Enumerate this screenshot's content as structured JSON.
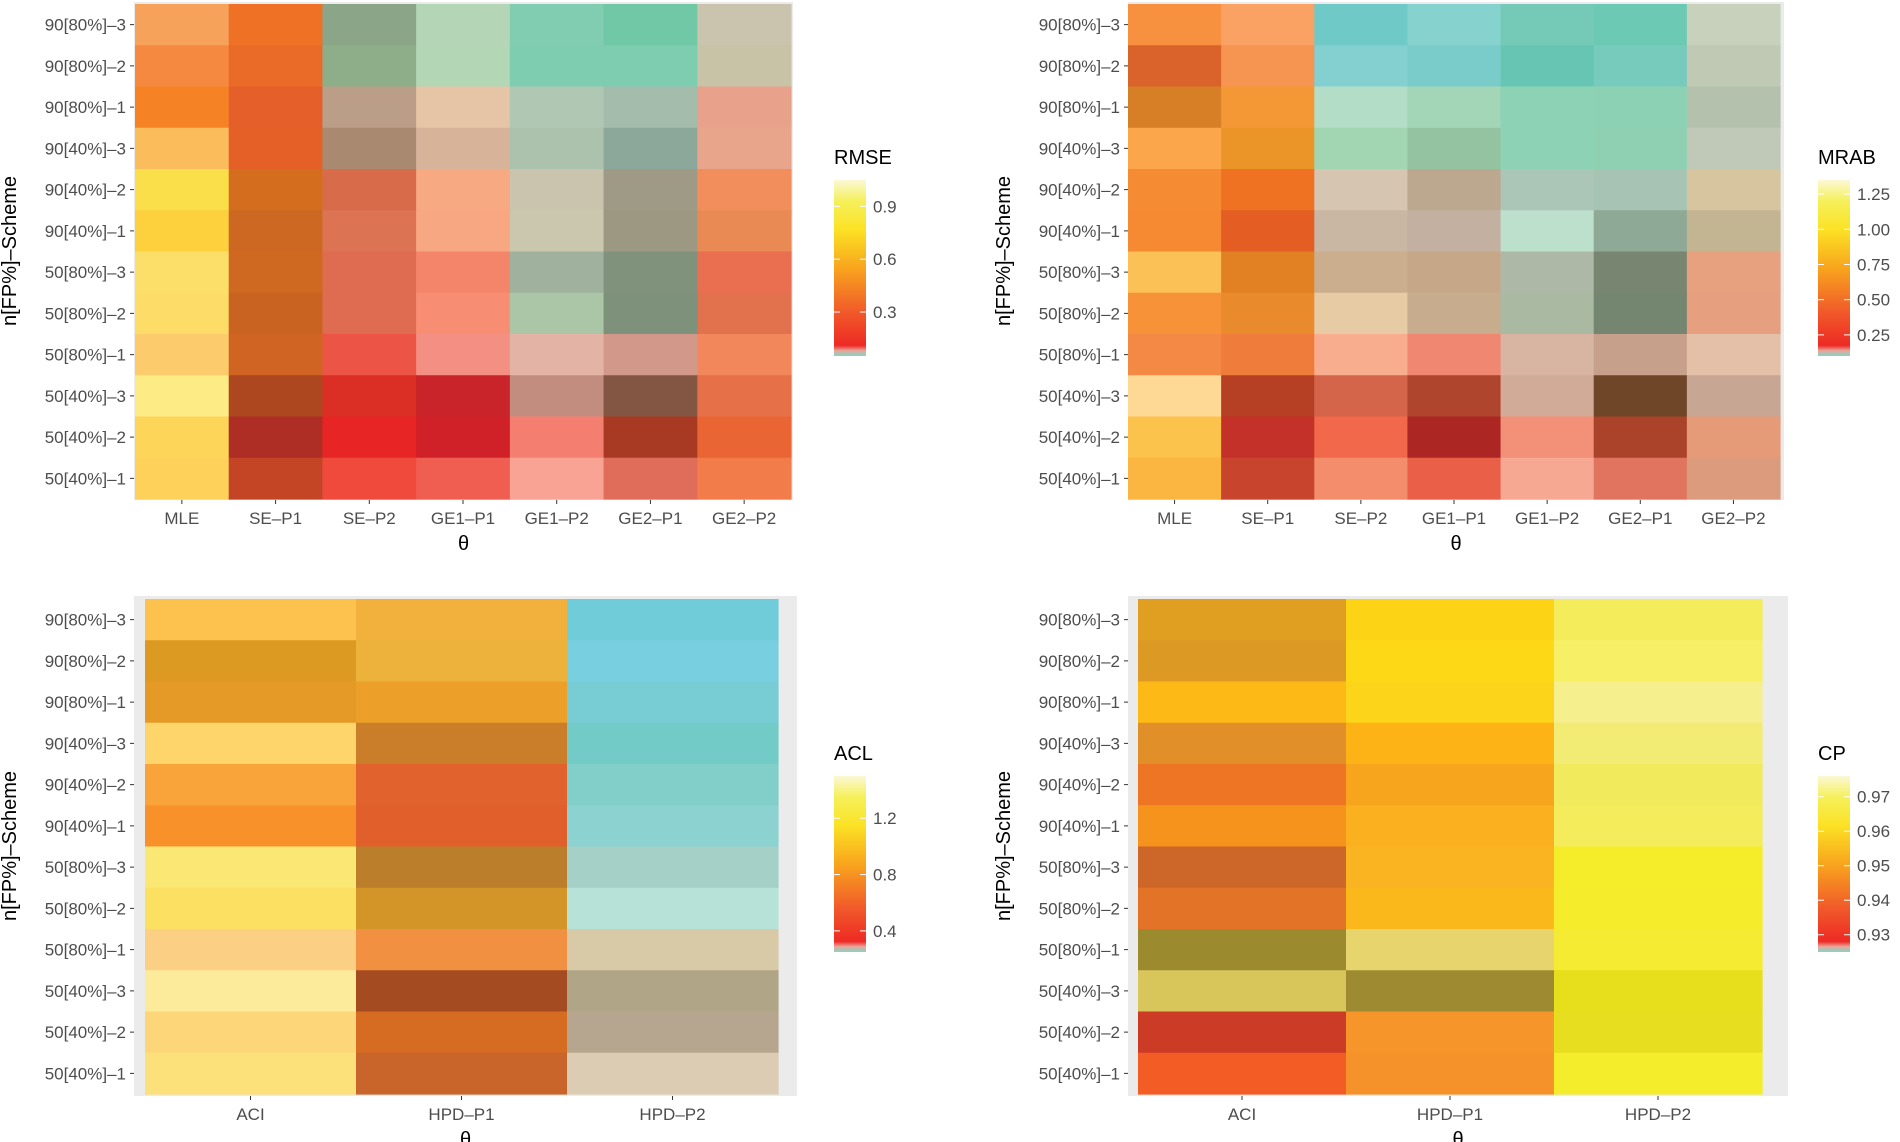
{
  "chart_data": [
    {
      "type": "heatmap",
      "title": "",
      "xlabel": "θ",
      "ylabel": "n[FP%]–Scheme",
      "legend_title": "RMSE",
      "legend_ticks": [
        "0.3",
        "0.6",
        "0.9"
      ],
      "legend_range": [
        0.05,
        1.05
      ],
      "x_categories": [
        "MLE",
        "SE–P1",
        "SE–P2",
        "GE1–P1",
        "GE1–P2",
        "GE2–P1",
        "GE2–P2"
      ],
      "y_categories": [
        "90[80%]–3",
        "90[80%]–2",
        "90[80%]–1",
        "90[40%]–3",
        "90[40%]–2",
        "90[40%]–1",
        "50[80%]–3",
        "50[80%]–2",
        "50[80%]–1",
        "50[40%]–3",
        "50[40%]–2",
        "50[40%]–1"
      ],
      "cell_colors": [
        [
          "#f7a25a",
          "#ee7125",
          "#8aa587",
          "#b5d6b6",
          "#80cdb1",
          "#70c8a6",
          "#cac3ad"
        ],
        [
          "#f5893f",
          "#ea6b27",
          "#8ead89",
          "#b3d6b5",
          "#7ecdb0",
          "#7ecdb1",
          "#c8c3a6"
        ],
        [
          "#f58326",
          "#e55f2b",
          "#bb9e87",
          "#e6c4a6",
          "#b0c7b4",
          "#a4bcab",
          "#e8a28b"
        ],
        [
          "#fbbd5c",
          "#e56027",
          "#a98a70",
          "#d7b39a",
          "#adc2ad",
          "#8ba89a",
          "#e8a58b"
        ],
        [
          "#fbdf4a",
          "#d46e1e",
          "#d86c4a",
          "#f7a982",
          "#cac3ad",
          "#9e9a85",
          "#f18e5b"
        ],
        [
          "#fdd13e",
          "#cd6822",
          "#dc7352",
          "#f7a782",
          "#cbc7ae",
          "#9c9882",
          "#e98a55"
        ],
        [
          "#fcdf69",
          "#cf6922",
          "#df6c51",
          "#f4856b",
          "#a0b29d",
          "#80917c",
          "#ea6f50"
        ],
        [
          "#fddc68",
          "#c96322",
          "#df6c51",
          "#f78e73",
          "#aac6a7",
          "#7e917b",
          "#e2714e"
        ],
        [
          "#fccb6c",
          "#d06423",
          "#ec5545",
          "#f48f83",
          "#e3b3a5",
          "#d2998b",
          "#f3875c"
        ],
        [
          "#fdeb86",
          "#ac4720",
          "#db2e25",
          "#c8242a",
          "#c28d7f",
          "#835543",
          "#e67048"
        ],
        [
          "#fdd659",
          "#ae2d24",
          "#e82525",
          "#d02128",
          "#f47f71",
          "#a83a24",
          "#e96534"
        ],
        [
          "#fdd15a",
          "#c44525",
          "#ef4a3c",
          "#f05e51",
          "#f8a393",
          "#e06c5a",
          "#f37c4b"
        ]
      ]
    },
    {
      "type": "heatmap",
      "title": "",
      "xlabel": "θ",
      "ylabel": "n[FP%]–Scheme",
      "legend_title": "MRAB",
      "legend_ticks": [
        "0.25",
        "0.50",
        "0.75",
        "1.00",
        "1.25"
      ],
      "legend_range": [
        0.1,
        1.35
      ],
      "x_categories": [
        "MLE",
        "SE–P1",
        "SE–P2",
        "GE1–P1",
        "GE1–P2",
        "GE2–P1",
        "GE2–P2"
      ],
      "y_categories": [
        "90[80%]–3",
        "90[80%]–2",
        "90[80%]–1",
        "90[40%]–3",
        "90[40%]–2",
        "90[40%]–1",
        "50[80%]–3",
        "50[80%]–2",
        "50[80%]–1",
        "50[40%]–3",
        "50[40%]–2",
        "50[40%]–1"
      ],
      "cell_colors": [
        [
          "#f7903f",
          "#f9a263",
          "#6fc9c6",
          "#86d2cf",
          "#74cab6",
          "#6cc9b4",
          "#c8d1bb"
        ],
        [
          "#d9632a",
          "#f69451",
          "#84d0d1",
          "#79ccca",
          "#67c6b3",
          "#76cbbc",
          "#bfc9b3"
        ],
        [
          "#d67f26",
          "#f39834",
          "#b3ddc7",
          "#a2d6b6",
          "#8ed2b6",
          "#8dd1b4",
          "#b4c2ad"
        ],
        [
          "#fba64b",
          "#eb9529",
          "#a2d6b2",
          "#94c3a2",
          "#8ed2b6",
          "#8fd0b3",
          "#c0c9b7"
        ],
        [
          "#f58c34",
          "#ef7222",
          "#d6c5b1",
          "#bca88f",
          "#abc5b6",
          "#a6c3b4",
          "#d6c59f"
        ],
        [
          "#f58a33",
          "#e45e23",
          "#c9b6a3",
          "#c3b0a1",
          "#bde0cd",
          "#8ea995",
          "#c3b492"
        ],
        [
          "#fbc156",
          "#e18124",
          "#cbae8e",
          "#c6a889",
          "#adb9a6",
          "#788671",
          "#e7a17f"
        ],
        [
          "#f89239",
          "#e98b2c",
          "#e6cba5",
          "#c7ad8d",
          "#a9b9a2",
          "#748570",
          "#e6a080"
        ],
        [
          "#f48845",
          "#f07c3b",
          "#f8ad8e",
          "#f08770",
          "#d8b4a2",
          "#c7a08c",
          "#e5c0a9"
        ],
        [
          "#fed996",
          "#b54024",
          "#d5654a",
          "#b0452d",
          "#d1ab98",
          "#6f4627",
          "#c7a694"
        ],
        [
          "#fbc24c",
          "#c33128",
          "#f2684a",
          "#ac2624",
          "#f29177",
          "#aa4329",
          "#e59b77"
        ],
        [
          "#fbb641",
          "#c8442c",
          "#f38d6c",
          "#e95f47",
          "#f6a892",
          "#e0745f",
          "#dc9b7c"
        ]
      ]
    },
    {
      "type": "heatmap",
      "title": "",
      "xlabel": "θ",
      "ylabel": "n[FP%]–Scheme",
      "legend_title": "ACL",
      "legend_ticks": [
        "0.4",
        "0.8",
        "1.2"
      ],
      "legend_range": [
        0.25,
        1.5
      ],
      "x_categories": [
        "ACI",
        "HPD–P1",
        "HPD–P2"
      ],
      "y_categories": [
        "90[80%]–3",
        "90[80%]–2",
        "90[80%]–1",
        "90[40%]–3",
        "90[40%]–2",
        "90[40%]–1",
        "50[80%]–3",
        "50[80%]–2",
        "50[80%]–1",
        "50[40%]–3",
        "50[40%]–2",
        "50[40%]–1"
      ],
      "cell_colors": [
        [
          "#fdc24e",
          "#f2b13d",
          "#71ccd9"
        ],
        [
          "#dc9a23",
          "#edb23b",
          "#78cfe0"
        ],
        [
          "#e59926",
          "#ec9f29",
          "#78ccd4"
        ],
        [
          "#fdd56a",
          "#ca7e29",
          "#72cbc7"
        ],
        [
          "#f9a43a",
          "#e1622c",
          "#82cec9"
        ],
        [
          "#f9912b",
          "#e05f2a",
          "#8bd2d1"
        ],
        [
          "#fbe773",
          "#bb7f2b",
          "#a5d0c8"
        ],
        [
          "#fce062",
          "#d39428",
          "#b6e2d8"
        ],
        [
          "#fcd084",
          "#f29042",
          "#d8c9a7"
        ],
        [
          "#fdeb9c",
          "#a44b22",
          "#b1a587"
        ],
        [
          "#fcd679",
          "#d56c21",
          "#b6a68f"
        ],
        [
          "#fce07a",
          "#c9642a",
          "#dcccb4"
        ]
      ]
    },
    {
      "type": "heatmap",
      "title": "",
      "xlabel": "θ",
      "ylabel": "n[FP%]–Scheme",
      "legend_title": "CP",
      "legend_ticks": [
        "0.93",
        "0.94",
        "0.95",
        "0.96",
        "0.97"
      ],
      "legend_range": [
        0.925,
        0.976
      ],
      "x_categories": [
        "ACI",
        "HPD–P1",
        "HPD–P2"
      ],
      "y_categories": [
        "90[80%]–3",
        "90[80%]–2",
        "90[80%]–1",
        "90[40%]–3",
        "90[40%]–2",
        "90[40%]–1",
        "50[80%]–3",
        "50[80%]–2",
        "50[80%]–1",
        "50[40%]–3",
        "50[40%]–2",
        "50[40%]–1"
      ],
      "cell_colors": [
        [
          "#e19f21",
          "#fcd415",
          "#f4ec5a"
        ],
        [
          "#dc9a24",
          "#fcd817",
          "#f7ef65"
        ],
        [
          "#fdb915",
          "#fcd419",
          "#f6ef8e"
        ],
        [
          "#e18f28",
          "#fdb316",
          "#f2ec75"
        ],
        [
          "#ee7524",
          "#f7a51d",
          "#f1ea5c"
        ],
        [
          "#f5931d",
          "#fab01f",
          "#f4ec5a"
        ],
        [
          "#cd6629",
          "#fab321",
          "#f5ed2a"
        ],
        [
          "#e37326",
          "#fbb81b",
          "#f5ed2b"
        ],
        [
          "#9c8a2f",
          "#e7d46c",
          "#f4eb32"
        ],
        [
          "#d9c65a",
          "#9e8b31",
          "#e7de1c"
        ],
        [
          "#cb3b26",
          "#f69529",
          "#e6de1e"
        ],
        [
          "#f35c24",
          "#f59229",
          "#f4ed2c"
        ]
      ]
    }
  ]
}
